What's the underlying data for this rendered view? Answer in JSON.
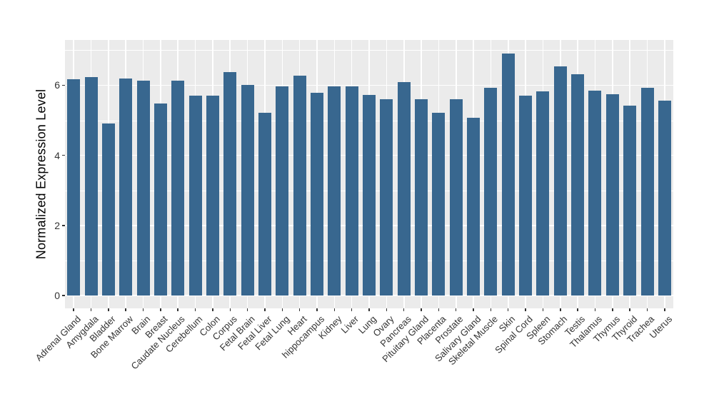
{
  "chart_data": {
    "type": "bar",
    "title": "",
    "xlabel": "",
    "ylabel": "Normalized Expression Level",
    "categories": [
      "Adrenal Gland",
      "Amygdala",
      "Bladder",
      "Bone Marrow",
      "Brain",
      "Breast",
      "Caudate Nucleus",
      "Cerebellum",
      "Colon",
      "Corpus",
      "Fetal Brain",
      "Fetal Liver",
      "Fetal Lung",
      "Heart",
      "hippocampus",
      "Kidney",
      "Liver",
      "Lung",
      "Ovary",
      "Pancreas",
      "Pituitary Gland",
      "Placenta",
      "Prostate",
      "Salivary Gland",
      "Skeletal Muscle",
      "Skin",
      "Spinal Cord",
      "Spleen",
      "Stomach",
      "Testis",
      "Thalamus",
      "Thymus",
      "Thyroid",
      "Trachea",
      "Uterus"
    ],
    "values": [
      6.17,
      6.23,
      4.9,
      6.2,
      6.14,
      5.47,
      6.14,
      5.7,
      5.7,
      6.38,
      6.01,
      5.22,
      5.96,
      6.28,
      5.79,
      5.96,
      5.96,
      5.72,
      5.61,
      6.1,
      5.6,
      5.21,
      5.6,
      5.08,
      5.92,
      6.9,
      5.71,
      5.82,
      6.54,
      6.32,
      5.85,
      5.74,
      5.41,
      5.92,
      5.57
    ],
    "ylim": [
      0,
      7
    ],
    "yticks_major": [
      0,
      2,
      4,
      6
    ],
    "yticks_minor": [
      1,
      3,
      5,
      7
    ],
    "legend": "none",
    "grid": "horizontal major+minor and vertical major, white on gray panel",
    "bar_color": "#38678F",
    "panel_background": "#EBEBEB",
    "gridline_color": "#FFFFFF",
    "tick_color": "#333333",
    "axis_title_color": "#000000"
  }
}
